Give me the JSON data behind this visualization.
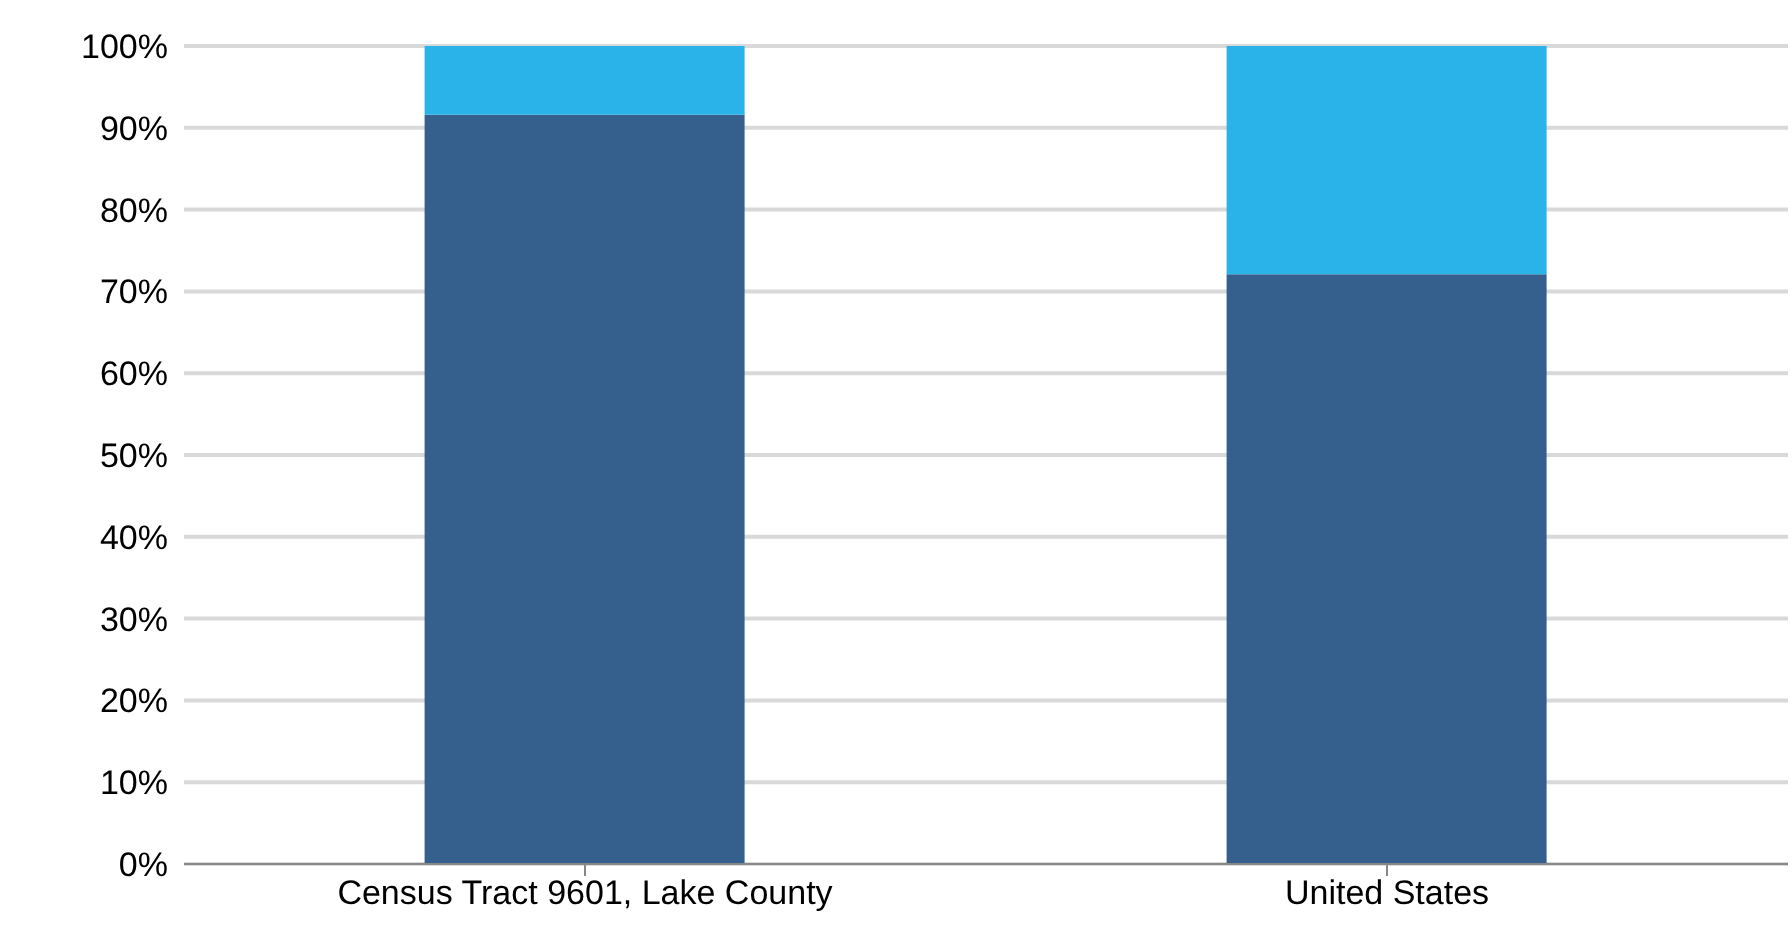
{
  "chart_data": {
    "type": "bar",
    "stacked": true,
    "categories": [
      "Census Tract 9601, Lake County",
      "United States"
    ],
    "series": [
      {
        "color": "#355f8d",
        "values": [
          91.6,
          72.1
        ]
      },
      {
        "color": "#2ab3e8",
        "values": [
          8.4,
          27.9
        ]
      }
    ],
    "ylim": [
      0,
      100
    ],
    "yticks": [
      {
        "value": 0,
        "label": "0%"
      },
      {
        "value": 10,
        "label": "10%"
      },
      {
        "value": 20,
        "label": "20%"
      },
      {
        "value": 30,
        "label": "30%"
      },
      {
        "value": 40,
        "label": "40%"
      },
      {
        "value": 50,
        "label": "50%"
      },
      {
        "value": 60,
        "label": "60%"
      },
      {
        "value": 70,
        "label": "70%"
      },
      {
        "value": 80,
        "label": "80%"
      },
      {
        "value": 90,
        "label": "90%"
      },
      {
        "value": 100,
        "label": "100%"
      }
    ],
    "grid": "y",
    "legend": false
  }
}
